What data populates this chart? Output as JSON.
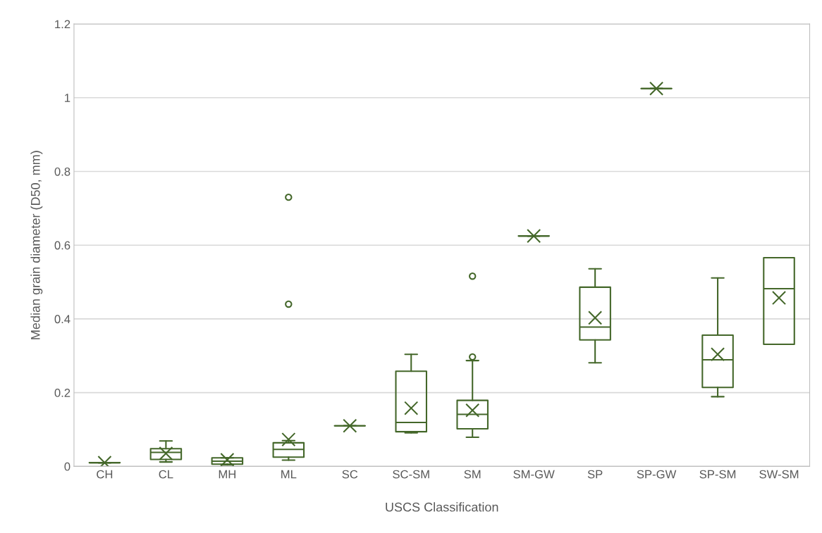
{
  "chart_data": {
    "type": "box",
    "xlabel": "USCS Classification",
    "ylabel": "Median grain diameter (D50, mm)",
    "categories": [
      "CH",
      "CL",
      "MH",
      "ML",
      "SC",
      "SC-SM",
      "SM",
      "SM-GW",
      "SP",
      "SP-GW",
      "SP-SM",
      "SW-SM"
    ],
    "color": "#44672a",
    "boxes": [
      {
        "low": 0.01,
        "q1": 0.01,
        "median": 0.01,
        "q3": 0.01,
        "high": 0.01,
        "mean": 0.01
      },
      {
        "low": 0.012,
        "q1": 0.019,
        "median": 0.038,
        "q3": 0.048,
        "high": 0.069,
        "mean": 0.035
      },
      {
        "low": 0.004,
        "q1": 0.006,
        "median": 0.014,
        "q3": 0.023,
        "high": 0.023,
        "mean": 0.018
      },
      {
        "low": 0.017,
        "q1": 0.025,
        "median": 0.046,
        "q3": 0.064,
        "high": 0.07,
        "mean": 0.073,
        "outliers": [
          0.44,
          0.73
        ]
      },
      {
        "low": 0.11,
        "q1": 0.11,
        "median": 0.11,
        "q3": 0.11,
        "high": 0.11,
        "mean": 0.11
      },
      {
        "low": 0.091,
        "q1": 0.094,
        "median": 0.119,
        "q3": 0.258,
        "high": 0.304,
        "mean": 0.158
      },
      {
        "low": 0.079,
        "q1": 0.102,
        "median": 0.141,
        "q3": 0.179,
        "high": 0.287,
        "mean": 0.152,
        "outliers": [
          0.297,
          0.516
        ]
      },
      {
        "low": 0.625,
        "q1": 0.625,
        "median": 0.625,
        "q3": 0.625,
        "high": 0.625,
        "mean": 0.625
      },
      {
        "low": 0.281,
        "q1": 0.343,
        "median": 0.378,
        "q3": 0.486,
        "high": 0.536,
        "mean": 0.403
      },
      {
        "low": 1.025,
        "q1": 1.025,
        "median": 1.025,
        "q3": 1.025,
        "high": 1.025,
        "mean": 1.025
      },
      {
        "low": 0.189,
        "q1": 0.214,
        "median": 0.289,
        "q3": 0.356,
        "high": 0.511,
        "mean": 0.304
      },
      {
        "low": 0.331,
        "q1": 0.331,
        "median": 0.482,
        "q3": 0.566,
        "high": 0.566,
        "mean": 0.457
      }
    ],
    "ylim": [
      0,
      1.2
    ],
    "yticks": [
      {
        "value": 0,
        "label": "0"
      },
      0.2,
      0.4,
      0.6,
      0.8,
      {
        "value": 1,
        "label": "1"
      },
      1.2
    ],
    "grid": "y"
  }
}
